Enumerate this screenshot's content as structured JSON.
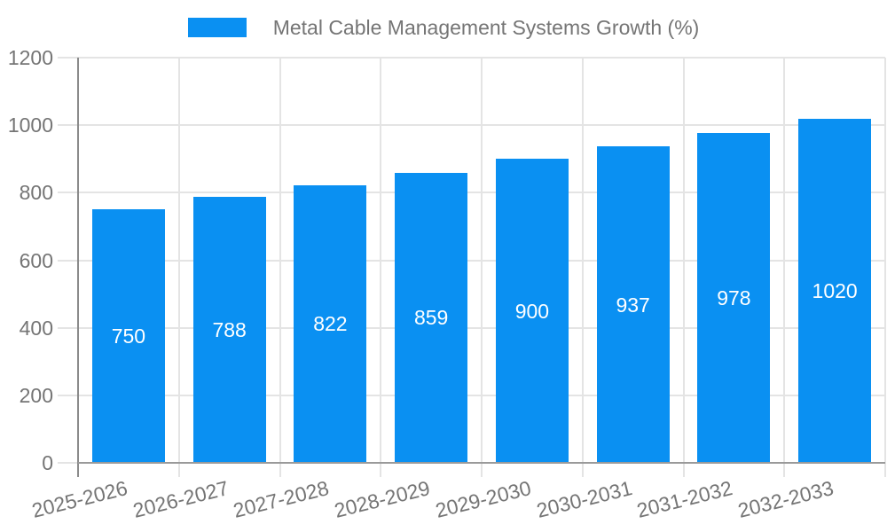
{
  "legend": {
    "label": "Metal Cable Management Systems Growth (%)"
  },
  "chart_data": {
    "type": "bar",
    "title": "Metal Cable Management Systems Growth (%)",
    "series_name": "Metal Cable Management Systems Growth (%)",
    "categories": [
      "2025-2026",
      "2026-2027",
      "2027-2028",
      "2028-2029",
      "2029-2030",
      "2030-2031",
      "2031-2032",
      "2032-2033"
    ],
    "values": [
      750,
      788,
      822,
      859,
      900,
      937,
      978,
      1020
    ],
    "xlabel": "",
    "ylabel": "",
    "ylim": [
      0,
      1200
    ],
    "yticks": [
      0,
      200,
      400,
      600,
      800,
      1000,
      1200
    ],
    "grid": true,
    "legend_position": "top-center",
    "value_labels": "inside-middle"
  },
  "colors": {
    "bar": "#0a90f2",
    "value_label": "#ffffff",
    "axis_text": "#757575",
    "legend_text": "#757575",
    "gridline": "#e4e4e4",
    "y_axis_line": "#8b8b8b",
    "x_axis_line": "#9a9a9a",
    "background": "#ffffff"
  }
}
